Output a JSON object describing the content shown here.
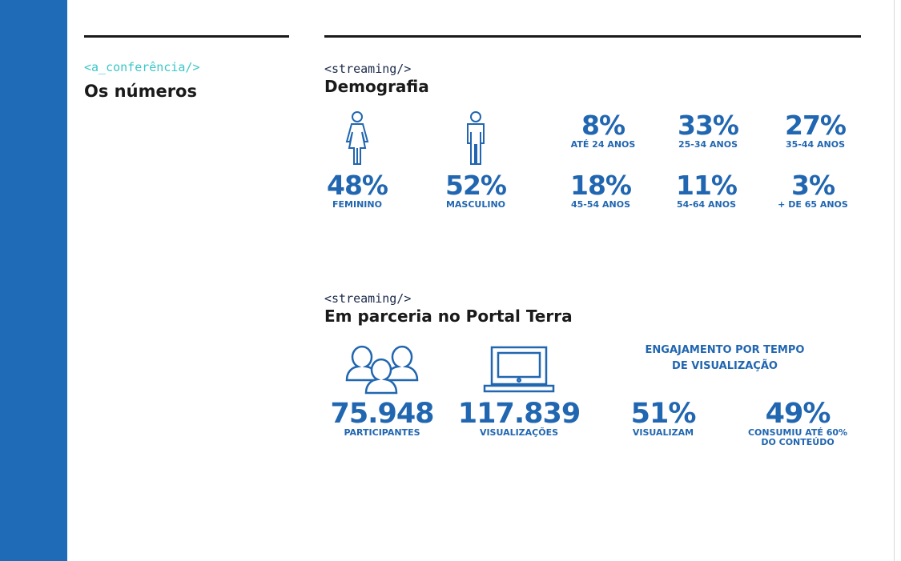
{
  "left": {
    "tag": "<a_conferência/>",
    "title": "Os números"
  },
  "demografia": {
    "tag": "<streaming/>",
    "title": "Demografia",
    "gender": [
      {
        "value": "48%",
        "label": "FEMININO",
        "icon": "female-icon"
      },
      {
        "value": "52%",
        "label": "MASCULINO",
        "icon": "male-icon"
      }
    ],
    "ages": [
      {
        "value": "8%",
        "label": "ATÉ 24 ANOS"
      },
      {
        "value": "33%",
        "label": "25-34 ANOS"
      },
      {
        "value": "27%",
        "label": "35-44 ANOS"
      },
      {
        "value": "18%",
        "label": "45-54 ANOS"
      },
      {
        "value": "11%",
        "label": "54-64 ANOS"
      },
      {
        "value": "3%",
        "label": "+ DE 65 ANOS"
      }
    ]
  },
  "terra": {
    "tag": "<streaming/>",
    "title": "Em parceria no Portal Terra",
    "participants": {
      "value": "75.948",
      "label": "PARTICIPANTES",
      "icon": "people-icon"
    },
    "views": {
      "value": "117.839",
      "label": "VISUALIZAÇÕES",
      "icon": "laptop-icon"
    },
    "engagement": {
      "heading_line1": "ENGAJAMENTO POR TEMPO",
      "heading_line2": "DE VISUALIZAÇÃO",
      "items": [
        {
          "value": "51%",
          "label_line1": "VISUALIZAM",
          "label_line2": ""
        },
        {
          "value": "49%",
          "label_line1": "CONSUMIU ATÉ 60%",
          "label_line2": "DO CONTEÚDO"
        }
      ]
    }
  },
  "colors": {
    "accent": "#2166b0",
    "sidebar": "#1f6bb8",
    "tag": "#3cc6c8"
  }
}
